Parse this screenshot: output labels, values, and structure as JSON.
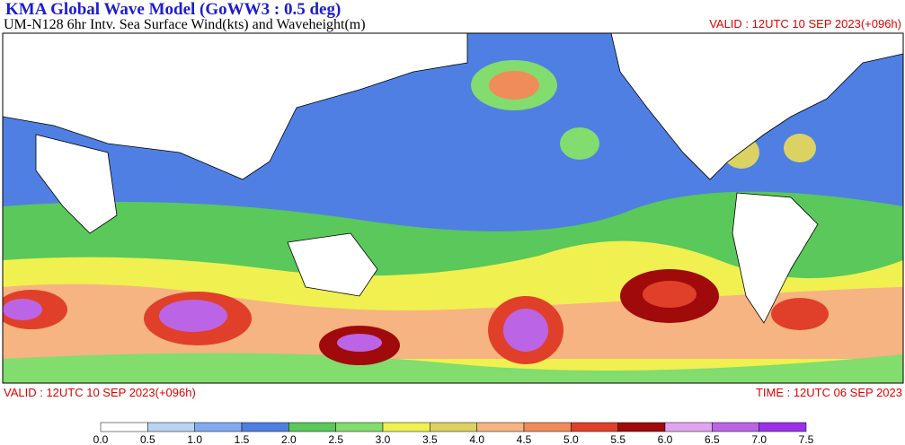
{
  "header": {
    "title": "KMA  Global Wave Model (GoWW3 : 0.5 deg)",
    "subtitle": "UM-N128  6hr Intv. Sea Surface Wind(kts) and Waveheight(m)",
    "valid_top": "VALID : 12UTC 10 SEP 2023(+096h)"
  },
  "footer": {
    "valid": "VALID : 12UTC 10 SEP 2023(+096h)",
    "time": "TIME : 12UTC 06 SEP 2023"
  },
  "colorbar": {
    "ticks": [
      "0.0",
      "0.5",
      "1.0",
      "1.5",
      "2.0",
      "2.5",
      "3.0",
      "3.5",
      "4.0",
      "4.5",
      "5.0",
      "5.5",
      "6.0",
      "6.5",
      "7.0",
      "7.5"
    ],
    "colors": [
      "#ffffff",
      "#b9d3f2",
      "#82aaf0",
      "#4f7fe3",
      "#5ac85a",
      "#82dc6e",
      "#f0f050",
      "#dcd264",
      "#f5b482",
      "#f08c5a",
      "#e0402a",
      "#a00a0a",
      "#e1a5f0",
      "#bc64e6",
      "#9b32eb"
    ]
  }
}
